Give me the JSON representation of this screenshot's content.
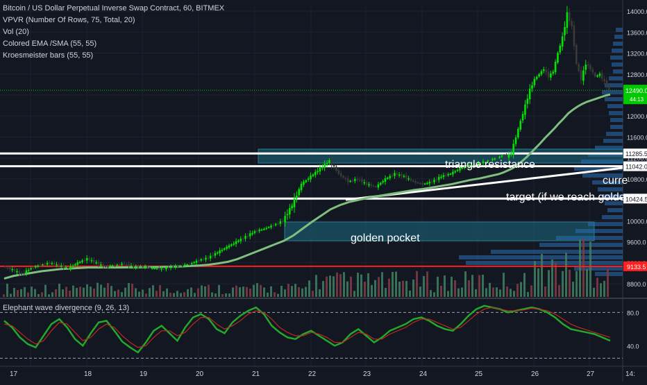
{
  "legend": {
    "symbol": "Bitcoin / US Dollar Perpetual Inverse Swap Contract, 60, BITMEX",
    "indicators": [
      "VPVR (Number Of Rows, 75, Total, 20)",
      "Vol (20)",
      "Colored EMA /SMA (55, 55)",
      "Kroesmeister bars (55, 55)"
    ],
    "oscillator": "Elephant wave divergence (9, 26, 13)"
  },
  "price_badge": {
    "value": "12490.0",
    "sub": "44:13"
  },
  "level_badges": [
    "11285.5",
    "11042.0",
    "10424.5",
    "9133.5"
  ],
  "annotations": {
    "triangle": "triangle resistance",
    "golden": "golden pocket",
    "current": "curre",
    "target": "target (if we reach golden p"
  },
  "colors": {
    "background": "#131722",
    "up": "#00e600",
    "down": "#3a3a3a",
    "ema": "#7fbf7f",
    "resistance_line": "#ffffff",
    "zone": "#1b5568",
    "red_line": "#ff1f1f",
    "vpvr": "#2a6fb5",
    "vol_up": "#3e7a5e",
    "vol_down": "#7d3a42",
    "osc_green": "#22a82a",
    "osc_red": "#c02820"
  },
  "chart_data": [
    {
      "type": "candlestick",
      "title": "Bitcoin / US Dollar Perpetual Inverse Swap Contract, 60, BITMEX",
      "timeframe": "60",
      "x_ticks": [
        "17",
        "18",
        "19",
        "20",
        "21",
        "22",
        "23",
        "24",
        "25",
        "26",
        "27",
        "14:"
      ],
      "y_ticks": [
        8800,
        9200,
        9600,
        10000,
        10400,
        10800,
        11200,
        11600,
        12000,
        12400,
        12800,
        13200,
        13600,
        14000
      ],
      "ylim": [
        8550,
        14080
      ],
      "x": [
        0,
        4,
        8,
        12,
        16,
        20,
        24,
        28,
        32,
        36,
        40,
        44,
        48,
        52,
        56,
        60,
        64,
        68,
        72,
        76,
        80,
        84,
        88,
        92,
        96,
        100,
        104,
        108,
        112,
        116,
        120,
        124,
        128,
        132,
        136,
        140,
        144,
        148,
        152,
        156,
        160,
        164,
        168,
        172,
        176,
        180,
        184,
        188,
        192,
        196,
        200,
        204,
        208,
        212,
        214,
        216,
        218,
        220,
        222,
        224,
        226,
        228,
        230,
        232,
        234,
        236,
        238,
        240,
        242,
        244,
        246,
        248,
        250,
        252,
        254,
        256,
        258,
        260
      ],
      "close": [
        9130,
        9070,
        8990,
        9100,
        9160,
        9200,
        9150,
        9100,
        9200,
        9280,
        9200,
        9120,
        9160,
        9180,
        9120,
        9130,
        9100,
        9080,
        9120,
        9140,
        9180,
        9250,
        9300,
        9400,
        9500,
        9600,
        9700,
        9800,
        9850,
        9920,
        10000,
        10300,
        10700,
        10850,
        11000,
        11150,
        10900,
        10750,
        10800,
        10700,
        10650,
        10800,
        10900,
        10850,
        10750,
        10700,
        10750,
        10850,
        10900,
        11000,
        11050,
        11100,
        11150,
        11200,
        11250,
        11220,
        11300,
        11600,
        11900,
        12200,
        12500,
        12700,
        12800,
        12900,
        12750,
        12850,
        13200,
        13500,
        13950,
        13700,
        13000,
        12700,
        13000,
        12900,
        12750,
        12800,
        12650,
        12490
      ],
      "ema": [
        8900,
        8950,
        8980,
        9010,
        9040,
        9060,
        9080,
        9090,
        9100,
        9110,
        9110,
        9110,
        9110,
        9112,
        9113,
        9115,
        9117,
        9120,
        9125,
        9130,
        9140,
        9150,
        9165,
        9190,
        9220,
        9270,
        9340,
        9410,
        9480,
        9550,
        9620,
        9720,
        9850,
        9980,
        10100,
        10220,
        10300,
        10360,
        10400,
        10440,
        10470,
        10500,
        10530,
        10560,
        10590,
        10610,
        10640,
        10670,
        10700,
        10740,
        10780,
        10810,
        10850,
        10890,
        10920,
        10960,
        11000,
        11060,
        11130,
        11210,
        11300,
        11390,
        11480,
        11580,
        11670,
        11760,
        11860,
        11950,
        12050,
        12120,
        12180,
        12230,
        12270,
        12300,
        12330,
        12360,
        12390,
        12410
      ]
    },
    {
      "type": "line",
      "title": "Elephant wave divergence (9, 26, 13)",
      "y_ticks": [
        40,
        80
      ],
      "ylim": [
        22,
        92
      ],
      "series": [
        {
          "values": [
            70,
            62,
            50,
            42,
            38,
            52,
            66,
            72,
            62,
            48,
            40,
            55,
            68,
            70,
            58,
            45,
            38,
            32,
            44,
            58,
            64,
            55,
            46,
            62,
            74,
            78,
            72,
            60,
            55,
            68,
            76,
            82,
            86,
            78,
            64,
            56,
            50,
            48,
            54,
            58,
            52,
            46,
            40,
            44,
            54,
            60,
            52,
            44,
            50,
            58,
            62,
            66,
            72,
            74,
            70,
            64,
            60,
            58,
            66,
            76,
            84,
            88,
            86,
            84,
            80,
            82,
            84,
            86,
            84,
            80,
            74,
            66,
            60,
            58,
            56,
            54,
            50,
            46
          ]
        },
        {
          "values": [
            66,
            64,
            56,
            48,
            42,
            46,
            58,
            68,
            66,
            56,
            46,
            50,
            60,
            66,
            62,
            52,
            44,
            38,
            40,
            50,
            58,
            58,
            52,
            56,
            66,
            74,
            74,
            66,
            60,
            64,
            70,
            78,
            82,
            80,
            72,
            62,
            56,
            52,
            52,
            56,
            54,
            50,
            44,
            44,
            50,
            56,
            54,
            48,
            48,
            54,
            58,
            62,
            68,
            72,
            72,
            68,
            64,
            60,
            62,
            70,
            78,
            84,
            86,
            84,
            82,
            82,
            83,
            85,
            84,
            82,
            78,
            72,
            66,
            62,
            59,
            56,
            53,
            50
          ]
        }
      ]
    }
  ]
}
